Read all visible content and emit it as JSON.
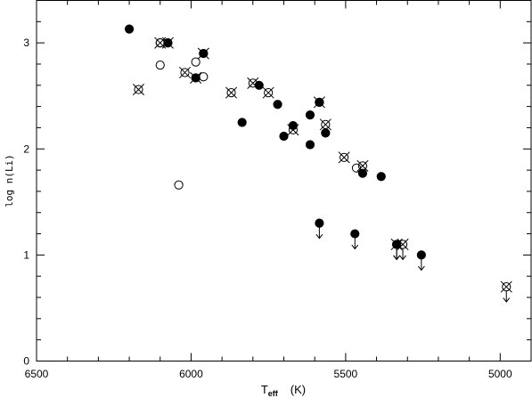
{
  "chart_data": {
    "type": "scatter",
    "xlabel": {
      "main": "T",
      "sub": "eff",
      "unit": "(K)"
    },
    "ylabel": "log n(Li)",
    "xlim": [
      6500,
      4900
    ],
    "ylim": [
      0,
      3.4
    ],
    "x_ticks": [
      6500,
      6000,
      5500,
      5000
    ],
    "x_tick_labels": [
      "6500",
      "6000",
      "5500",
      "5000"
    ],
    "y_ticks": [
      0,
      1,
      2,
      3
    ],
    "y_tick_labels": [
      "0",
      "1",
      "2",
      "3"
    ],
    "grid": false,
    "series": [
      {
        "marker": "filled-circle",
        "points": [
          {
            "x": 6200,
            "y": 3.13
          },
          {
            "x": 6075,
            "y": 3.0
          },
          {
            "x": 5985,
            "y": 2.67
          },
          {
            "x": 5960,
            "y": 2.9
          },
          {
            "x": 5835,
            "y": 2.25
          },
          {
            "x": 5780,
            "y": 2.6
          },
          {
            "x": 5720,
            "y": 2.42
          },
          {
            "x": 5700,
            "y": 2.12
          },
          {
            "x": 5670,
            "y": 2.22
          },
          {
            "x": 5615,
            "y": 2.32
          },
          {
            "x": 5615,
            "y": 2.04
          },
          {
            "x": 5585,
            "y": 2.44
          },
          {
            "x": 5565,
            "y": 2.15
          },
          {
            "x": 5445,
            "y": 1.77
          },
          {
            "x": 5385,
            "y": 1.74
          },
          {
            "x": 5585,
            "y": 1.3,
            "upper_limit": true
          },
          {
            "x": 5470,
            "y": 1.2,
            "upper_limit": true
          },
          {
            "x": 5335,
            "y": 1.1,
            "upper_limit": true
          },
          {
            "x": 5255,
            "y": 1.0,
            "upper_limit": true
          }
        ]
      },
      {
        "marker": "open-circle",
        "points": [
          {
            "x": 6100,
            "y": 3.0
          },
          {
            "x": 6100,
            "y": 2.79
          },
          {
            "x": 6040,
            "y": 1.66
          },
          {
            "x": 5985,
            "y": 2.82
          },
          {
            "x": 5960,
            "y": 2.68
          },
          {
            "x": 5465,
            "y": 1.82
          }
        ]
      },
      {
        "marker": "crossed-circle",
        "points": [
          {
            "x": 6170,
            "y": 2.56
          },
          {
            "x": 6100,
            "y": 3.0
          },
          {
            "x": 6075,
            "y": 3.0
          },
          {
            "x": 6020,
            "y": 2.72
          },
          {
            "x": 5985,
            "y": 2.67
          },
          {
            "x": 5960,
            "y": 2.9
          },
          {
            "x": 5870,
            "y": 2.53
          },
          {
            "x": 5800,
            "y": 2.62
          },
          {
            "x": 5750,
            "y": 2.53
          },
          {
            "x": 5670,
            "y": 2.18
          },
          {
            "x": 5585,
            "y": 2.44
          },
          {
            "x": 5565,
            "y": 2.23
          },
          {
            "x": 5505,
            "y": 1.92
          },
          {
            "x": 5445,
            "y": 1.84
          },
          {
            "x": 5335,
            "y": 1.1,
            "upper_limit": true
          },
          {
            "x": 5315,
            "y": 1.1,
            "upper_limit": true
          },
          {
            "x": 4980,
            "y": 0.7,
            "upper_limit": true
          }
        ]
      }
    ]
  }
}
